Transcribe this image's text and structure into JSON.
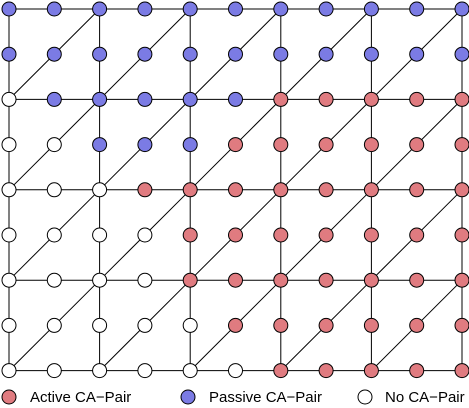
{
  "colors": {
    "active": "#e07b80",
    "passive": "#7b7be4",
    "none": "#ffffff",
    "stroke": "#000000"
  },
  "grid": {
    "columns": 11,
    "rows": 9,
    "major_every": 2,
    "cells": [
      "PPPPPPPPPPP",
      "PPPPPPPPPPP",
      "NPPPPPAAAAA",
      "NNPPPAAAAAA",
      "NNNAAAAAAAA",
      "NNNNAAAAAAA",
      "NNNNAAAAAAA",
      "NNNNNAAAAAA",
      "NNNNNNAAAAA"
    ]
  },
  "legend": {
    "active_label": "Active CA−Pair",
    "passive_label": "Passive CA−Pair",
    "none_label": "No CA−Pair"
  }
}
